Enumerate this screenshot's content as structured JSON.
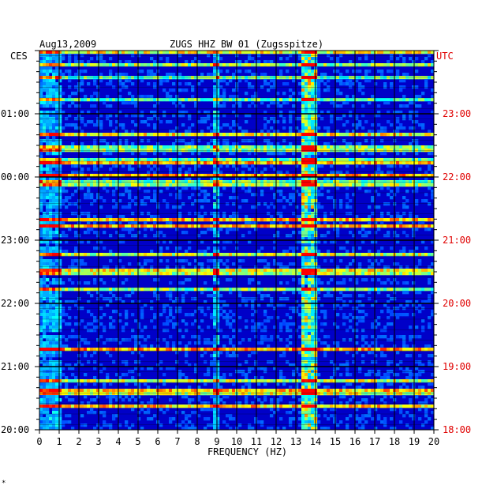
{
  "header": {
    "date": "Aug13,2009",
    "station": "ZUGS HHZ BW 01 (Zugsspitze)",
    "left_tz": "CES",
    "right_tz": "UTC"
  },
  "footer": {
    "mark": "*"
  },
  "chart_data": {
    "type": "heatmap",
    "title": "ZUGS HHZ BW 01 (Zugsspitze)",
    "date": "Aug13,2009",
    "xlabel": "FREQUENCY (HZ)",
    "xlim": [
      0,
      20
    ],
    "x_ticks": [
      "0",
      "1",
      "2",
      "3",
      "4",
      "5",
      "6",
      "7",
      "8",
      "9",
      "10",
      "11",
      "12",
      "13",
      "14",
      "15",
      "16",
      "17",
      "18",
      "19",
      "20"
    ],
    "left_axis_label": "CES",
    "left_ticks": [
      "01:00",
      "00:00",
      "23:00",
      "22:00",
      "21:00",
      "20:00"
    ],
    "right_axis_label": "UTC",
    "right_ticks": [
      "23:00",
      "22:00",
      "21:00",
      "20:00",
      "19:00",
      "18:00"
    ],
    "time_range_utc": [
      "18:00",
      "24:00"
    ],
    "colormap": [
      "#00008b",
      "#0000ff",
      "#00bfff",
      "#00ffff",
      "#ffff00",
      "#ff0000"
    ],
    "dominant_band_hz": [
      13.3,
      14.0
    ],
    "secondary_band_hz": [
      8.8,
      9.2
    ]
  }
}
